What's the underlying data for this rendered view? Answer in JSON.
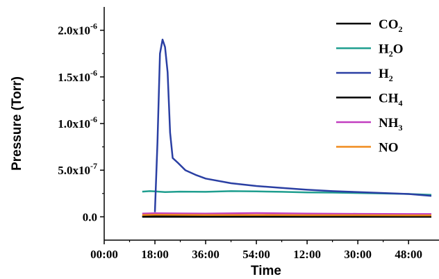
{
  "chart_data": {
    "type": "line",
    "title": "",
    "xlabel": "Time",
    "ylabel": "Pressure (Torr)",
    "x_ticks": [
      "00:00",
      "18:00",
      "36:00",
      "54:00",
      "12:00",
      "30:00",
      "48:00"
    ],
    "y_ticks": [
      "0.0",
      "5.0x10-7",
      "1.0x10-6",
      "1.5x10-6",
      "2.0x10-6"
    ],
    "xlim": [
      0,
      6.6
    ],
    "ylim": [
      -2.5e-07,
      2.25e-06
    ],
    "grid": false,
    "legend_position": "top-right",
    "series": [
      {
        "name": "CO2",
        "label_parts": [
          {
            "t": "CO",
            "sub": false
          },
          {
            "t": "2",
            "sub": true
          }
        ],
        "color": "#000000",
        "x": [
          0.75,
          1.0,
          2.0,
          3.0,
          4.0,
          5.0,
          6.0,
          6.45
        ],
        "y": [
          0,
          0,
          0,
          0,
          0,
          0,
          0,
          0
        ]
      },
      {
        "name": "H2O",
        "label_parts": [
          {
            "t": "H",
            "sub": false
          },
          {
            "t": "2",
            "sub": true
          },
          {
            "t": "O",
            "sub": false
          }
        ],
        "color": "#1f9e8f",
        "x": [
          0.75,
          0.9,
          1.0,
          1.2,
          1.5,
          2.0,
          2.5,
          3.0,
          3.5,
          4.0,
          4.5,
          5.0,
          5.5,
          6.0,
          6.45
        ],
        "y": [
          2.7e-07,
          2.75e-07,
          2.72e-07,
          2.65e-07,
          2.7e-07,
          2.68e-07,
          2.75e-07,
          2.72e-07,
          2.68e-07,
          2.62e-07,
          2.6e-07,
          2.55e-07,
          2.5e-07,
          2.45e-07,
          2.35e-07
        ]
      },
      {
        "name": "H2",
        "label_parts": [
          {
            "t": "H",
            "sub": false
          },
          {
            "t": "2",
            "sub": true
          }
        ],
        "color": "#2a3fa3",
        "x": [
          1.0,
          1.05,
          1.1,
          1.15,
          1.2,
          1.25,
          1.3,
          1.35,
          1.45,
          1.6,
          1.8,
          2.0,
          2.5,
          3.0,
          3.5,
          4.0,
          4.5,
          5.0,
          5.5,
          6.0,
          6.45
        ],
        "y": [
          5e-08,
          8e-07,
          1.75e-06,
          1.9e-06,
          1.82e-06,
          1.55e-06,
          9e-07,
          6.3e-07,
          5.8e-07,
          5e-07,
          4.5e-07,
          4.1e-07,
          3.6e-07,
          3.3e-07,
          3.1e-07,
          2.9e-07,
          2.75e-07,
          2.65e-07,
          2.55e-07,
          2.45e-07,
          2.25e-07
        ]
      },
      {
        "name": "CH4",
        "label_parts": [
          {
            "t": "CH",
            "sub": false
          },
          {
            "t": "4",
            "sub": true
          }
        ],
        "color": "#000000",
        "x": [
          0.75,
          1.0,
          2.0,
          3.0,
          4.0,
          5.0,
          6.0,
          6.45
        ],
        "y": [
          5e-09,
          5e-09,
          5e-09,
          5e-09,
          5e-09,
          5e-09,
          5e-09,
          5e-09
        ]
      },
      {
        "name": "NH3",
        "label_parts": [
          {
            "t": "NH",
            "sub": false
          },
          {
            "t": "3",
            "sub": true
          }
        ],
        "color": "#c23ec0",
        "x": [
          0.75,
          1.0,
          2.0,
          3.0,
          4.0,
          5.0,
          6.0,
          6.45
        ],
        "y": [
          3.5e-08,
          3.8e-08,
          3.5e-08,
          4e-08,
          3.5e-08,
          3.2e-08,
          3e-08,
          3e-08
        ]
      },
      {
        "name": "NO",
        "label_parts": [
          {
            "t": "NO",
            "sub": false
          }
        ],
        "color": "#f08a1c",
        "x": [
          0.75,
          1.0,
          2.0,
          3.0,
          4.0,
          5.0,
          6.0,
          6.45
        ],
        "y": [
          2e-08,
          2.2e-08,
          2e-08,
          2e-08,
          1.8e-08,
          1.8e-08,
          1.6e-08,
          1.6e-08
        ]
      }
    ]
  }
}
